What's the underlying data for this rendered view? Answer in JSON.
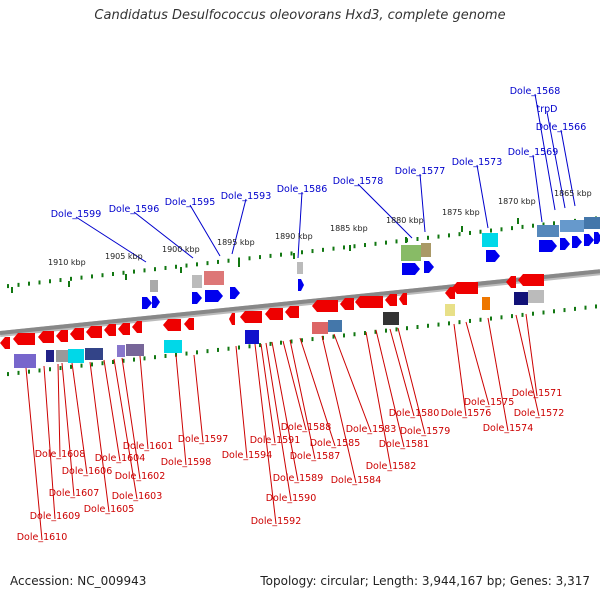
{
  "title": "Candidatus Desulfococcus oleovorans Hxd3, complete genome",
  "footer": {
    "accession": "Accession: NC_009943",
    "summary": "Topology: circular; Length: 3,944,167 bp; Genes: 3,317"
  },
  "colors": {
    "forward_gene": "#0000ee",
    "reverse_gene": "#ee0000",
    "forward_label": "#0000cc",
    "reverse_label": "#cc0000",
    "backbone": "#888888",
    "tick": "#117711"
  },
  "scale_labels": [
    "1910 kbp",
    "1905 kbp",
    "1900 kbp",
    "1895 kbp",
    "1890 kbp",
    "1885 kbp",
    "1880 kbp",
    "1875 kbp",
    "1870 kbp",
    "1865 kbp"
  ],
  "forward_labels": [
    "Dole_1599",
    "Dole_1596",
    "Dole_1595",
    "Dole_1593",
    "Dole_1586",
    "Dole_1578",
    "Dole_1577",
    "Dole_1573",
    "Dole_1569",
    "Dole_1568",
    "trpD",
    "Dole_1566"
  ],
  "reverse_labels": [
    "Dole_1610",
    "Dole_1609",
    "Dole_1608",
    "Dole_1607",
    "Dole_1606",
    "Dole_1605",
    "Dole_1604",
    "Dole_1603",
    "Dole_1602",
    "Dole_1601",
    "Dole_1597",
    "Dole_1598",
    "Dole_1594",
    "Dole_1592",
    "Dole_1591",
    "Dole_1590",
    "Dole_1589",
    "Dole_1588",
    "Dole_1587",
    "Dole_1585",
    "Dole_1584",
    "Dole_1583",
    "Dole_1582",
    "Dole_1581",
    "Dole_1580",
    "Dole_1579",
    "Dole_1576",
    "Dole_1575",
    "Dole_1574",
    "Dole_1572",
    "Dole_1571"
  ]
}
